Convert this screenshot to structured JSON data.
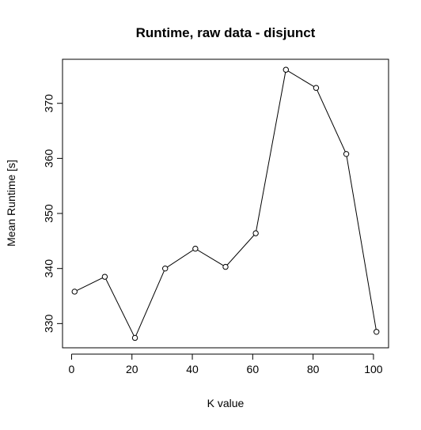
{
  "chart_data": {
    "type": "line",
    "title": "Runtime, raw data - disjunct",
    "xlabel": "K value",
    "ylabel": "Mean Runtime [s]",
    "x": [
      1,
      11,
      21,
      31,
      41,
      51,
      61,
      71,
      81,
      91,
      101
    ],
    "y": [
      335.8,
      338.5,
      327.4,
      340.0,
      343.6,
      340.3,
      346.4,
      376.1,
      372.8,
      360.8,
      328.5
    ],
    "xlim": [
      -3,
      105
    ],
    "ylim": [
      325.6,
      378.0
    ],
    "xticks": [
      0,
      20,
      40,
      60,
      80,
      100
    ],
    "yticks": [
      330,
      340,
      350,
      360,
      370
    ],
    "markers": "open-circle",
    "grid": false,
    "legend": "none",
    "colors": {
      "line": "#000000",
      "marker_stroke": "#000000",
      "marker_fill": "#ffffff",
      "frame": "#000000"
    }
  }
}
